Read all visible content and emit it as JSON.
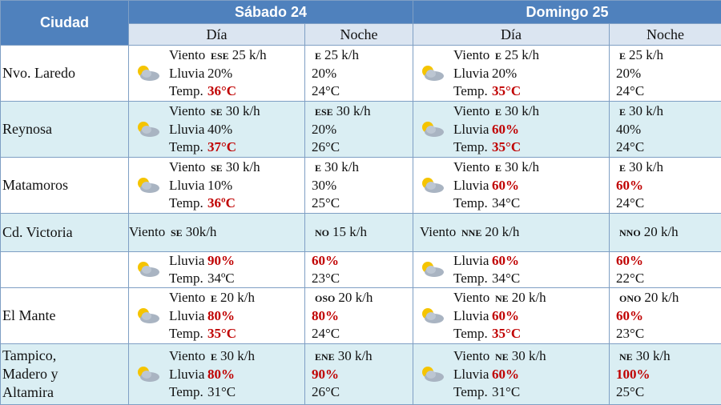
{
  "header": {
    "city": "Ciudad",
    "days": [
      {
        "title": "Sábado 24",
        "day": "Día",
        "night": "Noche"
      },
      {
        "title": "Domingo 25",
        "day": "Día",
        "night": "Noche"
      }
    ]
  },
  "rows": [
    {
      "city": "Nvo. Laredo",
      "cells": [
        [
          {
            "label": "Viento",
            "dir": "ESE",
            "value": "25 k/h"
          },
          {
            "label": "Lluvia",
            "value": "20%"
          },
          {
            "label": "Temp.",
            "value": "36°C",
            "color": "#c00000"
          }
        ],
        [
          {
            "dir": "E",
            "value": "25 k/h"
          },
          {
            "value": "20%"
          },
          {
            "value": "24°C"
          }
        ],
        [
          {
            "label": "Viento",
            "dir": "E",
            "value": "25 k/h"
          },
          {
            "label": "Lluvia",
            "value": "20%"
          },
          {
            "label": "Temp.",
            "value": "35°C",
            "color": "#c00000"
          }
        ],
        [
          {
            "dir": "E",
            "value": "25 k/h"
          },
          {
            "value": "20%"
          },
          {
            "value": "24°C"
          }
        ]
      ]
    },
    {
      "city": "Reynosa",
      "cells": [
        [
          {
            "label": "Viento",
            "dir": "SE",
            "value": "30 k/h"
          },
          {
            "label": "Lluvia",
            "value": "40%"
          },
          {
            "label": "Temp.",
            "value": "37°C",
            "color": "#c00000"
          }
        ],
        [
          {
            "dir": "ESE",
            "value": "30 k/h"
          },
          {
            "value": "20%"
          },
          {
            "value": "26°C"
          }
        ],
        [
          {
            "label": "Viento",
            "dir": "E",
            "value": "30 k/h"
          },
          {
            "label": "Lluvia",
            "value": "60%",
            "color": "#c00000"
          },
          {
            "label": "Temp.",
            "value": "35°C",
            "color": "#c00000"
          }
        ],
        [
          {
            "dir": "E",
            "value": "30 k/h"
          },
          {
            "value": "40%"
          },
          {
            "value": "24°C"
          }
        ]
      ]
    },
    {
      "city": "Matamoros",
      "cells": [
        [
          {
            "label": "Viento",
            "dir": "SE",
            "value": "30 k/h"
          },
          {
            "label": "Lluvia",
            "value": "10%"
          },
          {
            "label": "Temp.",
            "value": "36ºC",
            "color": "#c00000"
          }
        ],
        [
          {
            "dir": "E",
            "value": "30 k/h"
          },
          {
            "value": "30%"
          },
          {
            "value": "25°C"
          }
        ],
        [
          {
            "label": "Viento",
            "dir": "E",
            "value": "30 k/h"
          },
          {
            "label": "Lluvia",
            "value": "60%",
            "color": "#c00000"
          },
          {
            "label": "Temp.",
            "value": "34°C"
          }
        ],
        [
          {
            "dir": "E",
            "value": "30 k/h"
          },
          {
            "value": "60%",
            "color": "#c00000"
          },
          {
            "value": "24°C"
          }
        ]
      ]
    },
    {
      "city": "Cd. Victoria",
      "cells": [
        [
          {
            "label": "Viento",
            "dir": "SE",
            "value": "30k/h"
          }
        ],
        [
          {
            "dir": "NO",
            "value": "15 k/h"
          }
        ],
        [
          {
            "label": "Viento",
            "dir": "NNE",
            "value": "20 k/h"
          }
        ],
        [
          {
            "dir": "NNO",
            "value": "20 k/h"
          }
        ]
      ]
    },
    {
      "city": null,
      "cells": [
        [
          {
            "label": "Lluvia",
            "value": "90%",
            "color": "#c00000"
          },
          {
            "label": "Temp.",
            "value": "34ºC"
          }
        ],
        [
          {
            "value": "60%",
            "color": "#c00000"
          },
          {
            "value": "23°C"
          }
        ],
        [
          {
            "label": "Lluvia",
            "value": "60%",
            "color": "#c00000"
          },
          {
            "label": "Temp.",
            "value": "34°C"
          }
        ],
        [
          {
            "value": "60%",
            "color": "#c00000"
          },
          {
            "value": "22°C"
          }
        ]
      ]
    },
    {
      "city": "El Mante",
      "cells": [
        [
          {
            "label": "Viento",
            "dir": "E",
            "value": "20 k/h"
          },
          {
            "label": "Lluvia",
            "value": "80%",
            "color": "#c00000"
          },
          {
            "label": "Temp.",
            "value": "35°C",
            "color": "#c00000"
          }
        ],
        [
          {
            "dir": "OSO",
            "value": "20 k/h"
          },
          {
            "value": "80%",
            "color": "#c00000"
          },
          {
            "value": "24°C"
          }
        ],
        [
          {
            "label": "Viento",
            "dir": "NE",
            "value": "20 k/h"
          },
          {
            "label": "Lluvia",
            "value": "60%",
            "color": "#c00000"
          },
          {
            "label": "Temp.",
            "value": "35°C",
            "color": "#c00000"
          }
        ],
        [
          {
            "dir": "ONO",
            "value": "20 k/h"
          },
          {
            "value": "60%",
            "color": "#c00000"
          },
          {
            "value": "23°C"
          }
        ]
      ]
    },
    {
      "city": "Tampico,\nMadero y\nAltamira",
      "cells": [
        [
          {
            "label": "Viento",
            "dir": "E",
            "value": "30 k/h"
          },
          {
            "label": "Lluvia",
            "value": "80%",
            "color": "#c00000"
          },
          {
            "label": "Temp.",
            "value": "31°C"
          }
        ],
        [
          {
            "dir": "ENE",
            "value": "30 k/h"
          },
          {
            "value": "90%",
            "color": "#c00000"
          },
          {
            "value": "26°C"
          }
        ],
        [
          {
            "label": "Viento",
            "dir": "NE",
            "value": "30 k/h"
          },
          {
            "label": "Lluvia",
            "value": "60%",
            "color": "#c00000"
          },
          {
            "label": "Temp.",
            "value": "31°C"
          }
        ],
        [
          {
            "dir": "NE",
            "value": "30 k/h"
          },
          {
            "value": "100%",
            "color": "#c00000"
          },
          {
            "value": "25°C"
          }
        ]
      ]
    }
  ]
}
